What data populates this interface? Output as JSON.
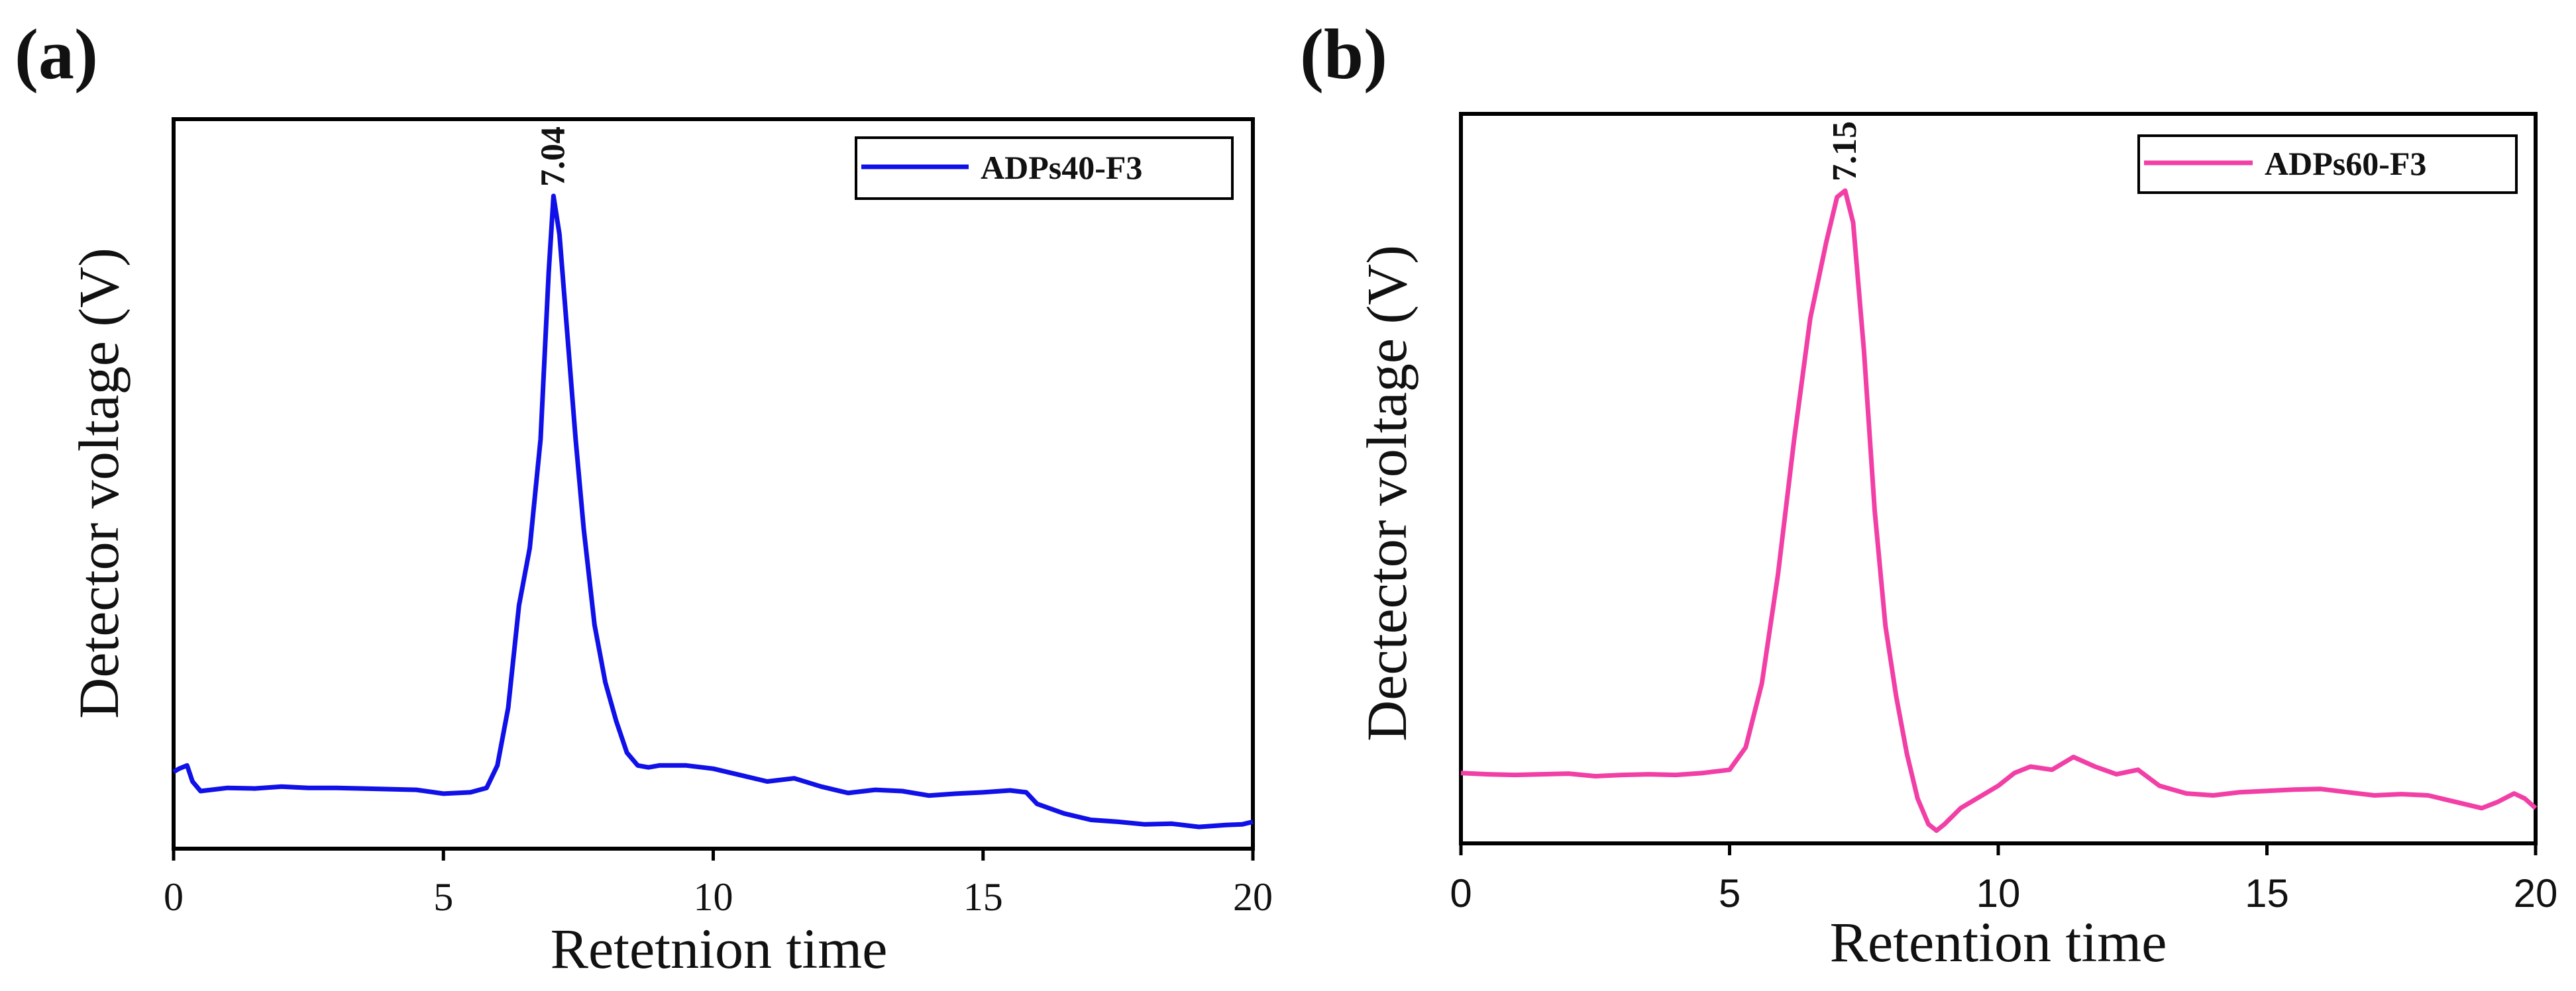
{
  "chart_data": [
    {
      "type": "line",
      "panel_label": "(a)",
      "title": "",
      "xlabel": "Retetnion time",
      "ylabel": "Detector voltage (V)",
      "xlim": [
        0,
        20
      ],
      "ylim": [
        -0.02,
        1.12
      ],
      "x_ticks": [
        "0",
        "5",
        "10",
        "15",
        "20"
      ],
      "y_ticks": [],
      "grid": false,
      "legend_position": "top-right",
      "peak_label": "7.04",
      "peak_x": 7.04,
      "series": [
        {
          "name": "ADPs40-F3",
          "color": "#1010e8",
          "x": [
            0,
            0.1,
            0.25,
            0.35,
            0.5,
            1,
            1.5,
            2,
            2.5,
            3,
            3.5,
            4,
            4.5,
            5,
            5.5,
            5.8,
            6,
            6.2,
            6.4,
            6.6,
            6.8,
            6.95,
            7.04,
            7.15,
            7.3,
            7.45,
            7.6,
            7.8,
            8.0,
            8.2,
            8.4,
            8.6,
            8.8,
            9,
            9.5,
            10,
            10.5,
            11,
            11.5,
            12,
            12.5,
            13,
            13.5,
            14,
            14.5,
            15,
            15.5,
            15.8,
            16,
            16.5,
            17,
            17.5,
            18,
            18.5,
            19,
            19.5,
            19.8,
            20
          ],
          "values": [
            0.1,
            0.105,
            0.11,
            0.085,
            0.07,
            0.075,
            0.074,
            0.077,
            0.075,
            0.075,
            0.074,
            0.073,
            0.072,
            0.066,
            0.068,
            0.075,
            0.11,
            0.2,
            0.36,
            0.45,
            0.62,
            0.88,
            1.0,
            0.94,
            0.78,
            0.62,
            0.48,
            0.33,
            0.24,
            0.18,
            0.13,
            0.11,
            0.107,
            0.11,
            0.11,
            0.105,
            0.095,
            0.085,
            0.09,
            0.077,
            0.067,
            0.072,
            0.07,
            0.063,
            0.066,
            0.068,
            0.071,
            0.068,
            0.05,
            0.035,
            0.025,
            0.022,
            0.018,
            0.019,
            0.014,
            0.017,
            0.018,
            0.022
          ]
        }
      ]
    },
    {
      "type": "line",
      "panel_label": "(b)",
      "title": "",
      "xlabel": "Retention time",
      "ylabel": "Dectector voltage (V)",
      "xlim": [
        0,
        20
      ],
      "ylim": [
        -0.02,
        1.12
      ],
      "x_ticks": [
        "0",
        "5",
        "10",
        "15",
        "20"
      ],
      "y_ticks": [],
      "grid": false,
      "legend_position": "top-right",
      "peak_label": "7.15",
      "peak_x": 7.15,
      "series": [
        {
          "name": "ADPs60-F3",
          "color": "#f23fa6",
          "x": [
            0,
            0.5,
            1,
            1.5,
            2,
            2.5,
            3,
            3.5,
            4,
            4.5,
            5,
            5.3,
            5.6,
            5.9,
            6.2,
            6.5,
            6.8,
            7.0,
            7.15,
            7.3,
            7.5,
            7.7,
            7.9,
            8.1,
            8.3,
            8.5,
            8.7,
            8.85,
            9.0,
            9.3,
            9.6,
            10,
            10.3,
            10.6,
            11,
            11.4,
            11.8,
            12.2,
            12.6,
            13,
            13.5,
            14,
            14.5,
            15,
            15.5,
            16,
            16.5,
            17,
            17.5,
            18,
            18.5,
            19,
            19.3,
            19.6,
            19.8,
            20
          ],
          "values": [
            0.09,
            0.088,
            0.087,
            0.088,
            0.089,
            0.085,
            0.087,
            0.088,
            0.087,
            0.09,
            0.095,
            0.13,
            0.23,
            0.4,
            0.61,
            0.8,
            0.92,
            0.99,
            1.0,
            0.95,
            0.75,
            0.5,
            0.32,
            0.21,
            0.12,
            0.05,
            0.01,
            0.0,
            0.01,
            0.035,
            0.05,
            0.07,
            0.09,
            0.1,
            0.095,
            0.115,
            0.1,
            0.088,
            0.095,
            0.07,
            0.058,
            0.055,
            0.06,
            0.062,
            0.064,
            0.065,
            0.06,
            0.055,
            0.057,
            0.055,
            0.045,
            0.035,
            0.045,
            0.058,
            0.05,
            0.035
          ]
        }
      ]
    }
  ]
}
